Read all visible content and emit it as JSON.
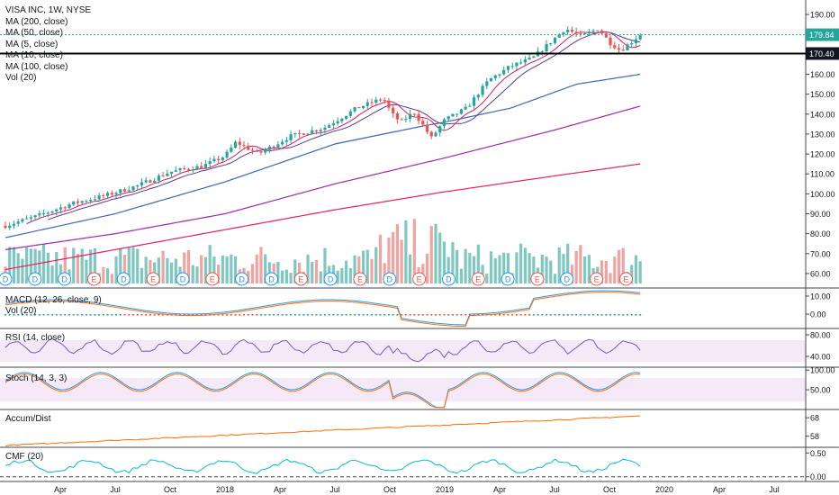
{
  "header": {
    "title": "VISA INC, 1W, NYSE",
    "ma_legends": [
      "MA (200, close)",
      "MA (50, close)",
      "MA (5, close)",
      "MA (10, close)",
      "MA (100, close)",
      "Vol (20)"
    ]
  },
  "panes": {
    "macd_title": "MACD (12, 26, close, 9)",
    "macd_vol_title": "Vol (20)",
    "rsi_title": "RSI (14, close)",
    "stoch_title": "Stoch (14, 3, 3)",
    "accum_title": "Accum/Dist",
    "cmf_title": "CMF (20)"
  },
  "price_labels": {
    "current": "179.84",
    "line": "170.40"
  },
  "chart_data": {
    "type": "candlestick",
    "x_labels": [
      "Apr",
      "Jul",
      "Oct",
      "2018",
      "Apr",
      "Jul",
      "Oct",
      "2019",
      "Apr",
      "Jul",
      "Oct",
      "2020",
      "Apr",
      "Jul"
    ],
    "y_ticks": [
      "190.00",
      "180.00",
      "170.00",
      "160.00",
      "150.00",
      "140.00",
      "130.00",
      "120.00",
      "110.00",
      "100.00",
      "90.00",
      "80.00",
      "70.00",
      "60.00"
    ],
    "ylim": [
      55,
      195
    ],
    "price_anchors": [
      [
        2017.0,
        84
      ],
      [
        2017.15,
        89
      ],
      [
        2017.3,
        95
      ],
      [
        2017.45,
        99
      ],
      [
        2017.6,
        104
      ],
      [
        2017.75,
        111
      ],
      [
        2017.9,
        114
      ],
      [
        2018.0,
        119
      ],
      [
        2018.05,
        126
      ],
      [
        2018.15,
        120
      ],
      [
        2018.3,
        129
      ],
      [
        2018.45,
        133
      ],
      [
        2018.6,
        143
      ],
      [
        2018.72,
        148
      ],
      [
        2018.76,
        140
      ],
      [
        2018.8,
        136
      ],
      [
        2018.86,
        141
      ],
      [
        2018.94,
        128
      ],
      [
        2019.0,
        137
      ],
      [
        2019.1,
        143
      ],
      [
        2019.2,
        157
      ],
      [
        2019.3,
        164
      ],
      [
        2019.4,
        168
      ],
      [
        2019.5,
        178
      ],
      [
        2019.55,
        183
      ],
      [
        2019.62,
        179
      ],
      [
        2019.7,
        183
      ],
      [
        2019.75,
        176
      ],
      [
        2019.8,
        172
      ],
      [
        2019.86,
        177
      ],
      [
        2019.89,
        180
      ]
    ],
    "ma200_anchors": [
      [
        2017.0,
        62
      ],
      [
        2017.5,
        72
      ],
      [
        2018.0,
        82
      ],
      [
        2018.5,
        92
      ],
      [
        2019.0,
        101
      ],
      [
        2019.5,
        109
      ],
      [
        2019.89,
        115
      ]
    ],
    "ma100_anchors": [
      [
        2017.0,
        72
      ],
      [
        2017.5,
        80
      ],
      [
        2018.0,
        90
      ],
      [
        2018.5,
        105
      ],
      [
        2019.0,
        118
      ],
      [
        2019.5,
        132
      ],
      [
        2019.89,
        144
      ]
    ],
    "ma50_anchors": [
      [
        2017.0,
        78
      ],
      [
        2017.5,
        90
      ],
      [
        2018.0,
        106
      ],
      [
        2018.5,
        125
      ],
      [
        2018.9,
        134
      ],
      [
        2019.0,
        136
      ],
      [
        2019.3,
        143
      ],
      [
        2019.6,
        155
      ],
      [
        2019.89,
        160
      ]
    ],
    "volume_ticks": [
      "10.00",
      "0.00"
    ],
    "rsi_ticks": [
      "80.00",
      "40.00"
    ],
    "stoch_ticks": [
      "100.00",
      "50.00"
    ],
    "accum_ticks": [
      "68",
      "58"
    ],
    "cmf_ticks": [
      "0.50",
      "0.00"
    ],
    "event_markers": [
      "D",
      "D",
      "D",
      "E",
      "D",
      "E",
      "D",
      "E",
      "D",
      "D",
      "E",
      "D",
      "E",
      "D",
      "E",
      "D",
      "E",
      "D",
      "E",
      "D",
      "E",
      "E"
    ]
  }
}
